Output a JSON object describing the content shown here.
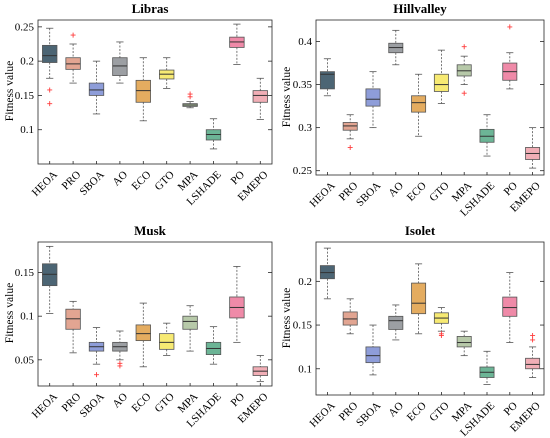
{
  "chart_data": [
    {
      "type": "box",
      "title": "Libras",
      "ylabel": "Fitness value",
      "categories": [
        "HEOA",
        "PRO",
        "SBOA",
        "AO",
        "ECO",
        "GTO",
        "MPA",
        "LSHADE",
        "PO",
        "EMEPO"
      ],
      "ylim": [
        0.05,
        0.26
      ],
      "yticks": [
        "0.1",
        "0.15",
        "0.2",
        "0.25"
      ],
      "ytick_values": [
        0.1,
        0.15,
        0.2,
        0.25
      ],
      "colors": [
        "#4c6574",
        "#e2a592",
        "#8e9dd9",
        "#9c9fa3",
        "#e4ac60",
        "#f7ea73",
        "#b7c9a9",
        "#6cb596",
        "#ef8aa8",
        "#f1aeb6"
      ],
      "boxes": [
        {
          "min": 0.175,
          "q1": 0.198,
          "median": 0.208,
          "q3": 0.223,
          "max": 0.248,
          "outliers": [
            0.158,
            0.138
          ]
        },
        {
          "min": 0.168,
          "q1": 0.188,
          "median": 0.196,
          "q3": 0.205,
          "max": 0.225,
          "outliers": [
            0.238
          ]
        },
        {
          "min": 0.123,
          "q1": 0.15,
          "median": 0.158,
          "q3": 0.168,
          "max": 0.2,
          "outliers": []
        },
        {
          "min": 0.168,
          "q1": 0.179,
          "median": 0.193,
          "q3": 0.205,
          "max": 0.228,
          "outliers": []
        },
        {
          "min": 0.113,
          "q1": 0.14,
          "median": 0.157,
          "q3": 0.172,
          "max": 0.205,
          "outliers": []
        },
        {
          "min": 0.16,
          "q1": 0.174,
          "median": 0.181,
          "q3": 0.187,
          "max": 0.205,
          "outliers": []
        },
        {
          "min": 0.132,
          "q1": 0.134,
          "median": 0.136,
          "q3": 0.138,
          "max": 0.141,
          "outliers": [
            0.148,
            0.152
          ]
        },
        {
          "min": 0.072,
          "q1": 0.085,
          "median": 0.093,
          "q3": 0.1,
          "max": 0.116,
          "outliers": []
        },
        {
          "min": 0.195,
          "q1": 0.22,
          "median": 0.228,
          "q3": 0.235,
          "max": 0.254,
          "outliers": []
        },
        {
          "min": 0.115,
          "q1": 0.14,
          "median": 0.15,
          "q3": 0.157,
          "max": 0.175,
          "outliers": []
        }
      ]
    },
    {
      "type": "box",
      "title": "Hillvalley",
      "ylabel": "Fitness value",
      "categories": [
        "HEOA",
        "PRO",
        "SBOA",
        "AO",
        "ECO",
        "GTO",
        "MPA",
        "LSHADE",
        "PO",
        "EMEPO"
      ],
      "ylim": [
        0.245,
        0.425
      ],
      "yticks": [
        "0.25",
        "0.3",
        "0.35",
        "0.4"
      ],
      "ytick_values": [
        0.25,
        0.3,
        0.35,
        0.4
      ],
      "colors": [
        "#4c6574",
        "#e2a592",
        "#8e9dd9",
        "#9c9fa3",
        "#e4ac60",
        "#f7ea73",
        "#b7c9a9",
        "#6cb596",
        "#ef8aa8",
        "#f1aeb6"
      ],
      "boxes": [
        {
          "min": 0.337,
          "q1": 0.345,
          "median": 0.362,
          "q3": 0.365,
          "max": 0.38,
          "outliers": []
        },
        {
          "min": 0.287,
          "q1": 0.297,
          "median": 0.302,
          "q3": 0.306,
          "max": 0.315,
          "outliers": [
            0.277
          ]
        },
        {
          "min": 0.3,
          "q1": 0.325,
          "median": 0.333,
          "q3": 0.345,
          "max": 0.365,
          "outliers": []
        },
        {
          "min": 0.373,
          "q1": 0.387,
          "median": 0.393,
          "q3": 0.398,
          "max": 0.413,
          "outliers": []
        },
        {
          "min": 0.29,
          "q1": 0.318,
          "median": 0.329,
          "q3": 0.337,
          "max": 0.362,
          "outliers": []
        },
        {
          "min": 0.328,
          "q1": 0.342,
          "median": 0.35,
          "q3": 0.362,
          "max": 0.39,
          "outliers": []
        },
        {
          "min": 0.35,
          "q1": 0.36,
          "median": 0.366,
          "q3": 0.373,
          "max": 0.383,
          "outliers": [
            0.394,
            0.34
          ]
        },
        {
          "min": 0.267,
          "q1": 0.283,
          "median": 0.29,
          "q3": 0.298,
          "max": 0.315,
          "outliers": []
        },
        {
          "min": 0.345,
          "q1": 0.355,
          "median": 0.365,
          "q3": 0.375,
          "max": 0.387,
          "outliers": [
            0.417
          ]
        },
        {
          "min": 0.253,
          "q1": 0.263,
          "median": 0.27,
          "q3": 0.277,
          "max": 0.3,
          "outliers": []
        }
      ]
    },
    {
      "type": "box",
      "title": "Musk",
      "ylabel": "Fitness value",
      "categories": [
        "HEOA",
        "PRO",
        "SBOA",
        "AO",
        "ECO",
        "GTO",
        "MPA",
        "LSHADE",
        "PO",
        "EMEPO"
      ],
      "ylim": [
        0.02,
        0.185
      ],
      "yticks": [
        "0.05",
        "0.1",
        "0.15"
      ],
      "ytick_values": [
        0.05,
        0.1,
        0.15
      ],
      "colors": [
        "#4c6574",
        "#e2a592",
        "#8e9dd9",
        "#9c9fa3",
        "#e4ac60",
        "#f7ea73",
        "#b7c9a9",
        "#6cb596",
        "#ef8aa8",
        "#f1aeb6"
      ],
      "boxes": [
        {
          "min": 0.103,
          "q1": 0.135,
          "median": 0.148,
          "q3": 0.16,
          "max": 0.18,
          "outliers": []
        },
        {
          "min": 0.058,
          "q1": 0.085,
          "median": 0.097,
          "q3": 0.108,
          "max": 0.117,
          "outliers": []
        },
        {
          "min": 0.045,
          "q1": 0.06,
          "median": 0.065,
          "q3": 0.07,
          "max": 0.087,
          "outliers": [
            0.033
          ]
        },
        {
          "min": 0.05,
          "q1": 0.06,
          "median": 0.065,
          "q3": 0.07,
          "max": 0.083,
          "outliers": [
            0.046,
            0.043
          ]
        },
        {
          "min": 0.042,
          "q1": 0.072,
          "median": 0.08,
          "q3": 0.09,
          "max": 0.115,
          "outliers": []
        },
        {
          "min": 0.055,
          "q1": 0.062,
          "median": 0.07,
          "q3": 0.08,
          "max": 0.092,
          "outliers": []
        },
        {
          "min": 0.06,
          "q1": 0.085,
          "median": 0.094,
          "q3": 0.1,
          "max": 0.112,
          "outliers": []
        },
        {
          "min": 0.045,
          "q1": 0.056,
          "median": 0.063,
          "q3": 0.07,
          "max": 0.088,
          "outliers": []
        },
        {
          "min": 0.07,
          "q1": 0.098,
          "median": 0.11,
          "q3": 0.122,
          "max": 0.157,
          "outliers": []
        },
        {
          "min": 0.025,
          "q1": 0.032,
          "median": 0.037,
          "q3": 0.042,
          "max": 0.055,
          "outliers": []
        }
      ]
    },
    {
      "type": "box",
      "title": "Isolet",
      "ylabel": "Fitness value",
      "categories": [
        "HEOA",
        "PRO",
        "SBOA",
        "AO",
        "ECO",
        "GTO",
        "MPA",
        "LSHADE",
        "PO",
        "EMEPO"
      ],
      "ylim": [
        0.07,
        0.245
      ],
      "yticks": [
        "0.1",
        "0.15",
        "0.2"
      ],
      "ytick_values": [
        0.1,
        0.15,
        0.2
      ],
      "colors": [
        "#4c6574",
        "#e2a592",
        "#8e9dd9",
        "#9c9fa3",
        "#e4ac60",
        "#f7ea73",
        "#b7c9a9",
        "#6cb596",
        "#ef8aa8",
        "#f1aeb6"
      ],
      "boxes": [
        {
          "min": 0.18,
          "q1": 0.203,
          "median": 0.21,
          "q3": 0.218,
          "max": 0.238,
          "outliers": []
        },
        {
          "min": 0.14,
          "q1": 0.15,
          "median": 0.157,
          "q3": 0.165,
          "max": 0.18,
          "outliers": []
        },
        {
          "min": 0.093,
          "q1": 0.107,
          "median": 0.115,
          "q3": 0.125,
          "max": 0.15,
          "outliers": []
        },
        {
          "min": 0.133,
          "q1": 0.145,
          "median": 0.155,
          "q3": 0.16,
          "max": 0.173,
          "outliers": []
        },
        {
          "min": 0.14,
          "q1": 0.163,
          "median": 0.175,
          "q3": 0.198,
          "max": 0.22,
          "outliers": []
        },
        {
          "min": 0.143,
          "q1": 0.152,
          "median": 0.158,
          "q3": 0.164,
          "max": 0.17,
          "outliers": [
            0.14,
            0.138
          ]
        },
        {
          "min": 0.115,
          "q1": 0.125,
          "median": 0.13,
          "q3": 0.137,
          "max": 0.143,
          "outliers": []
        },
        {
          "min": 0.082,
          "q1": 0.09,
          "median": 0.096,
          "q3": 0.102,
          "max": 0.12,
          "outliers": []
        },
        {
          "min": 0.13,
          "q1": 0.16,
          "median": 0.17,
          "q3": 0.182,
          "max": 0.21,
          "outliers": []
        },
        {
          "min": 0.09,
          "q1": 0.1,
          "median": 0.105,
          "q3": 0.112,
          "max": 0.125,
          "outliers": [
            0.138,
            0.133
          ]
        }
      ]
    }
  ]
}
